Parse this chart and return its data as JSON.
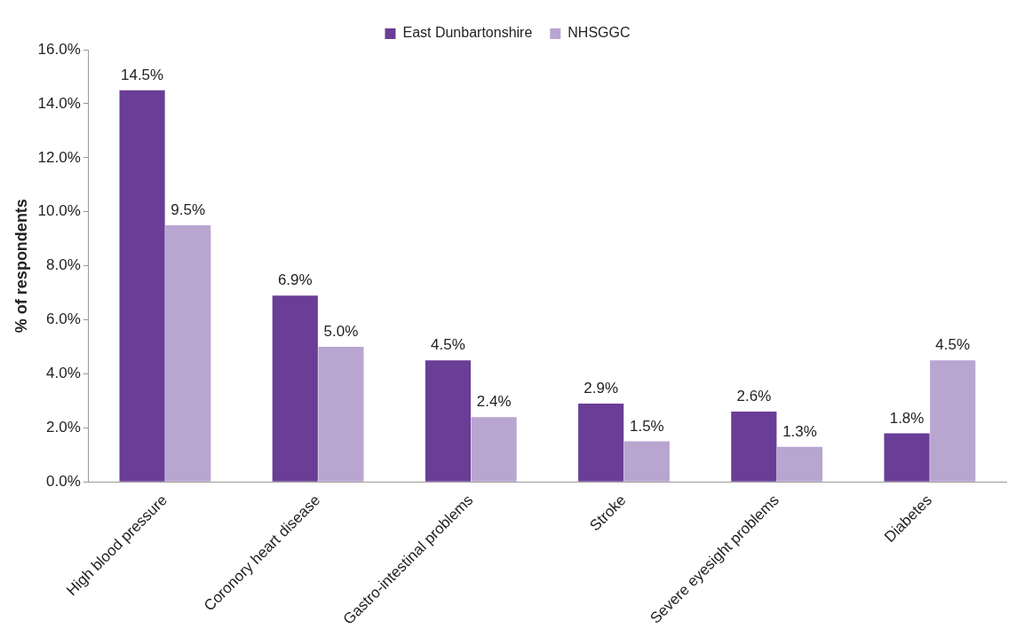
{
  "chart_data": {
    "type": "bar",
    "ylabel": "% of respondents",
    "categories": [
      "High blood pressure",
      "Coronory heart disease",
      "Gastro-intestinal problems",
      "Stroke",
      "Severe eyesight problems",
      "Diabetes"
    ],
    "series": [
      {
        "name": "East Dunbartonshire",
        "color": "#6a3d96",
        "values": [
          14.5,
          6.9,
          4.5,
          2.9,
          2.6,
          1.8
        ],
        "value_labels": [
          "14.5%",
          "6.9%",
          "4.5%",
          "2.9%",
          "2.6%",
          "1.8%"
        ]
      },
      {
        "name": "NHSGGC",
        "color": "#b8a5d0",
        "values": [
          9.5,
          5.0,
          2.4,
          1.5,
          1.3,
          4.5
        ],
        "value_labels": [
          "9.5%",
          "5.0%",
          "2.4%",
          "1.5%",
          "1.3%",
          "4.5%"
        ]
      }
    ],
    "ylim": [
      0,
      16
    ],
    "yticks": [
      {
        "value": 0,
        "label": "0.0%"
      },
      {
        "value": 2,
        "label": "2.0%"
      },
      {
        "value": 4,
        "label": "4.0%"
      },
      {
        "value": 6,
        "label": "6.0%"
      },
      {
        "value": 8,
        "label": "8.0%"
      },
      {
        "value": 10,
        "label": "10.0%"
      },
      {
        "value": 12,
        "label": "12.0%"
      },
      {
        "value": 14,
        "label": "14.0%"
      },
      {
        "value": 16,
        "label": "16.0%"
      }
    ],
    "grid": false,
    "legend": "top"
  }
}
